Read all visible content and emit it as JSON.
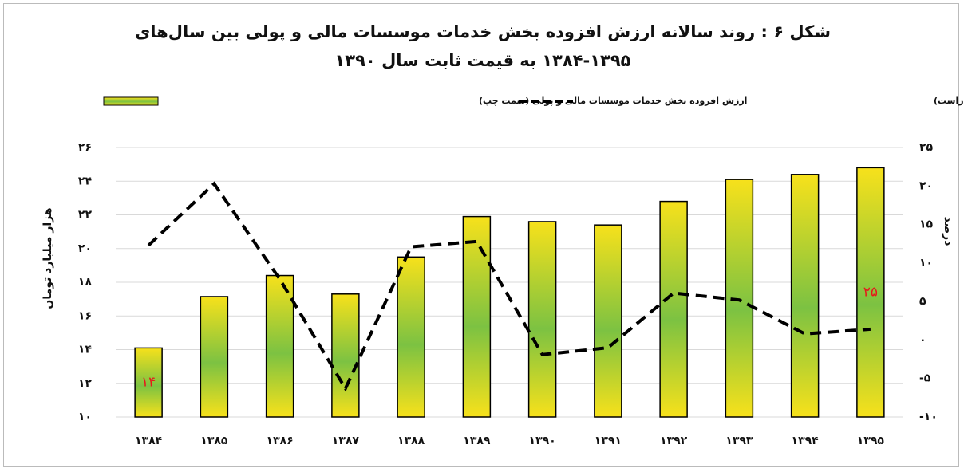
{
  "chart_data": {
    "type": "bar_line",
    "title": "شکل ۶ : روند سالانه ارزش افزوده بخش خدمات موسسات مالی و پولی بین سال‌های ۱۳۹۵-۱۳۸۴ به قیمت ثابت سال ۱۳۹۰",
    "y_label": "هزار میلیارد تومان",
    "y2_label": "درصد",
    "categories": [
      "۱۳۸۴",
      "۱۳۸۵",
      "۱۳۸۶",
      "۱۳۸۷",
      "۱۳۸۸",
      "۱۳۸۹",
      "۱۳۹۰",
      "۱۳۹۱",
      "۱۳۹۲",
      "۱۳۹۳",
      "۱۳۹۴",
      "۱۳۹۵"
    ],
    "series": [
      {
        "name": "ارزش افزوده بخش خدمات موسسات مالی و پولی (سمت چپ)",
        "type": "bar",
        "color": "#f7e11b",
        "values": [
          14.1,
          17.15,
          18.4,
          17.3,
          19.5,
          21.9,
          21.6,
          21.4,
          22.8,
          24.1,
          24.4,
          24.8
        ],
        "value_labels": [
          "۱۴",
          null,
          null,
          null,
          null,
          null,
          null,
          null,
          null,
          null,
          null,
          "۲۵"
        ]
      },
      {
        "name": "رشد ارزش افزوده بخش خدمات موسسات پولی و مالی (سمت راست)",
        "type": "line",
        "axis": "y2",
        "color": "#000000",
        "dashed": true,
        "values": [
          12.3,
          20.3,
          7.9,
          -6.3,
          12.1,
          12.8,
          -1.9,
          -1.0,
          6.1,
          5.2,
          0.8,
          1.4
        ]
      }
    ],
    "ylim": [
      10,
      26
    ],
    "yticks": [
      {
        "value": 10,
        "label": "۱۰"
      },
      {
        "value": 12,
        "label": "۱۲"
      },
      {
        "value": 14,
        "label": "۱۴"
      },
      {
        "value": 16,
        "label": "۱۶"
      },
      {
        "value": 18,
        "label": "۱۸"
      },
      {
        "value": 20,
        "label": "۲۰"
      },
      {
        "value": 22,
        "label": "۲۲"
      },
      {
        "value": 24,
        "label": "۲۴"
      },
      {
        "value": 26,
        "label": "۲۶"
      }
    ],
    "y2lim": [
      -10,
      25
    ],
    "y2ticks": [
      {
        "value": -10,
        "label": "-۱۰"
      },
      {
        "value": -5,
        "label": "-۵"
      },
      {
        "value": 0,
        "label": "۰"
      },
      {
        "value": 5,
        "label": "۵"
      },
      {
        "value": 10,
        "label": "۱۰"
      },
      {
        "value": 15,
        "label": "۱۵"
      },
      {
        "value": 20,
        "label": "۲۰"
      },
      {
        "value": 25,
        "label": "۲۵"
      }
    ],
    "grid": true,
    "legend": "top"
  }
}
